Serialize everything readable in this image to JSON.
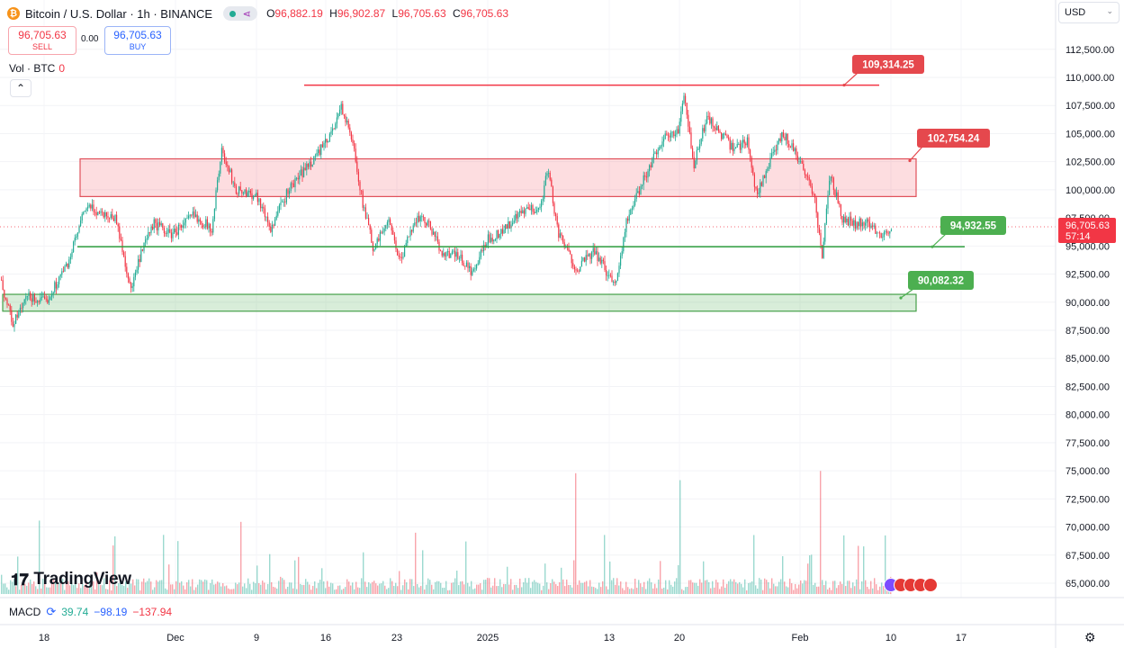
{
  "header": {
    "symbol_title": "Bitcoin / U.S. Dollar · 1h · BINANCE",
    "ohlc": {
      "o_label": "O",
      "o": "96,882.19",
      "h_label": "H",
      "h": "96,902.87",
      "l_label": "L",
      "l": "96,705.63",
      "c_label": "C",
      "c": "96,705.63"
    }
  },
  "trade": {
    "sell_price": "96,705.63",
    "sell_label": "SELL",
    "spread": "0.00",
    "buy_price": "96,705.63",
    "buy_label": "BUY"
  },
  "volume_label": {
    "name": "Vol · BTC",
    "value": "0"
  },
  "currency": "USD",
  "macd": {
    "name": "MACD",
    "v1": "39.74",
    "v2": "−98.19",
    "v3": "−137.94"
  },
  "logo": "TradingView",
  "icons": [
    "btc-logo-icon",
    "live-dot-icon",
    "share-icon",
    "collapse-chevron-icon",
    "chevron-down-icon",
    "gear-icon",
    "events-icon"
  ],
  "colors": {
    "up": "#22ab94",
    "down": "#f23645",
    "resistance": "#f23645",
    "support": "#2e9e3e",
    "support_label": "#4caf50"
  },
  "chart_data": {
    "type": "candlestick",
    "title": "Bitcoin / U.S. Dollar · 1h · BINANCE",
    "ylim": [
      65000,
      113750
    ],
    "y_ticks": [
      112500,
      110000,
      107500,
      105000,
      102500,
      100000,
      97500,
      95000,
      92500,
      90000,
      87500,
      85000,
      82500,
      80000,
      77500,
      75000,
      72500,
      70000,
      67500,
      65000
    ],
    "y_tick_labels": [
      "112,500.00",
      "110,000.00",
      "107,500.00",
      "105,000.00",
      "102,500.00",
      "100,000.00",
      "97,500.00",
      "95,000.00",
      "92,500.00",
      "90,000.00",
      "87,500.00",
      "85,000.00",
      "82,500.00",
      "80,000.00",
      "77,500.00",
      "75,000.00",
      "72,500.00",
      "70,000.00",
      "67,500.00",
      "65,000.00"
    ],
    "x_ticks": [
      "18",
      "Dec",
      "9",
      "16",
      "23",
      "2025",
      "13",
      "20",
      "Feb",
      "10",
      "17"
    ],
    "price_path": [
      [
        0,
        92000
      ],
      [
        14,
        88000
      ],
      [
        30,
        90500
      ],
      [
        50,
        90000
      ],
      [
        75,
        93500
      ],
      [
        95,
        98500
      ],
      [
        110,
        98000
      ],
      [
        128,
        97500
      ],
      [
        145,
        91000
      ],
      [
        155,
        94000
      ],
      [
        170,
        97000
      ],
      [
        190,
        96000
      ],
      [
        215,
        97800
      ],
      [
        235,
        96500
      ],
      [
        245,
        103500
      ],
      [
        262,
        100000
      ],
      [
        285,
        99500
      ],
      [
        300,
        96500
      ],
      [
        320,
        100000
      ],
      [
        345,
        102500
      ],
      [
        365,
        104500
      ],
      [
        378,
        107500
      ],
      [
        392,
        104000
      ],
      [
        402,
        99000
      ],
      [
        415,
        94500
      ],
      [
        430,
        97500
      ],
      [
        445,
        93500
      ],
      [
        460,
        97500
      ],
      [
        475,
        97000
      ],
      [
        490,
        94500
      ],
      [
        510,
        94000
      ],
      [
        525,
        92500
      ],
      [
        540,
        95500
      ],
      [
        560,
        96500
      ],
      [
        580,
        98000
      ],
      [
        600,
        98500
      ],
      [
        608,
        102000
      ],
      [
        620,
        96000
      ],
      [
        640,
        93000
      ],
      [
        660,
        94500
      ],
      [
        683,
        91500
      ],
      [
        695,
        97000
      ],
      [
        715,
        101000
      ],
      [
        735,
        104500
      ],
      [
        752,
        105000
      ],
      [
        760,
        108500
      ],
      [
        770,
        102000
      ],
      [
        785,
        106500
      ],
      [
        800,
        105000
      ],
      [
        815,
        103500
      ],
      [
        830,
        104500
      ],
      [
        840,
        99500
      ],
      [
        855,
        102500
      ],
      [
        870,
        105000
      ],
      [
        882,
        103500
      ],
      [
        895,
        101500
      ],
      [
        905,
        99000
      ],
      [
        913,
        94000
      ],
      [
        922,
        101500
      ],
      [
        935,
        97500
      ],
      [
        950,
        97000
      ],
      [
        965,
        97000
      ],
      [
        980,
        96000
      ],
      [
        990,
        96705.63
      ]
    ],
    "current_price": 96705.63,
    "current_price_label": "96,705.63",
    "countdown": "57:14",
    "levels": {
      "resistance_line": {
        "value": 109314.25,
        "label": "109,314.25"
      },
      "resistance_zone": {
        "from": 99400,
        "to": 102754.24,
        "label": "102,754.24"
      },
      "support_line": {
        "value": 94932.55,
        "label": "94,932.55"
      },
      "support_zone": {
        "from": 89200,
        "to": 90700,
        "label": "90,082.32"
      }
    },
    "volume": {
      "series": "Vol · BTC",
      "note": "spiky hourly volume histogram at chart bottom"
    }
  }
}
